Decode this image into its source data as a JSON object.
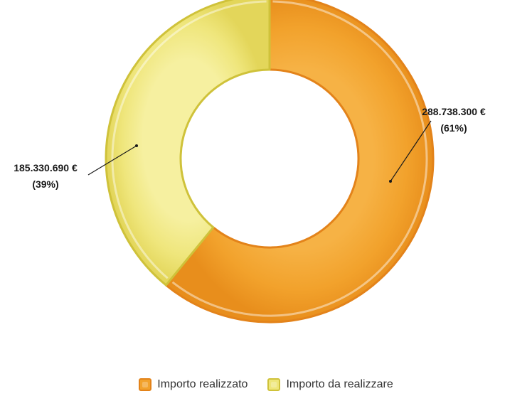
{
  "chart_data": {
    "type": "pie",
    "variant": "donut",
    "slices": [
      {
        "name": "Importo realizzato",
        "value": 288738300,
        "value_label": "288.738.300 €",
        "percent_label": "(61%)",
        "color": "#f2a22c"
      },
      {
        "name": "Importo da realizzare",
        "value": 185330690,
        "value_label": "185.330.690 €",
        "percent_label": "(39%)",
        "color": "#eee67a"
      }
    ],
    "legend": {
      "placement": "bottom-center",
      "items": [
        "Importo realizzato",
        "Importo da realizzare"
      ]
    }
  },
  "colors": {
    "realizzato_fill": "#f2a22c",
    "realizzato_edge": "#e3831a",
    "da_realizzare_fill": "#eee67a",
    "da_realizzare_edge": "#cfc23a",
    "leader_line": "#1a1a1a"
  }
}
